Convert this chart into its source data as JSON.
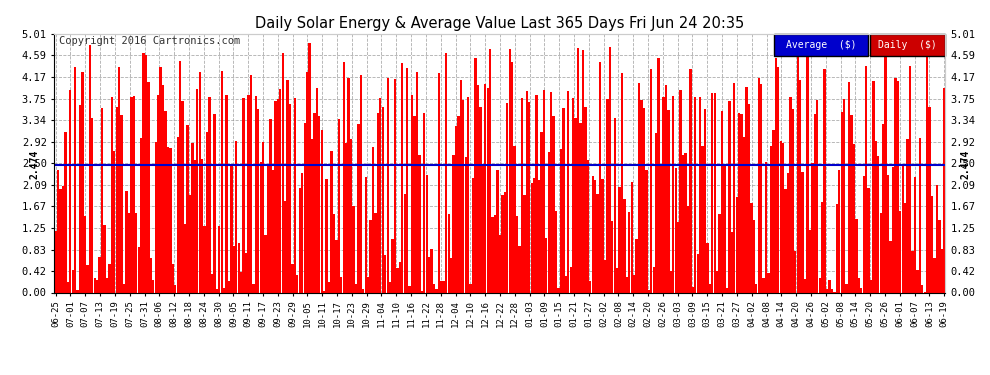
{
  "title": "Daily Solar Energy & Average Value Last 365 Days Fri Jun 24 20:35",
  "copyright": "Copyright 2016 Cartronics.com",
  "average_value": 2.474,
  "average_label": "2.474",
  "yticks": [
    0.0,
    0.42,
    0.83,
    1.25,
    1.67,
    2.09,
    2.5,
    2.92,
    3.34,
    3.75,
    4.17,
    4.59,
    5.01
  ],
  "ymax": 5.01,
  "ymin": 0.0,
  "bar_color": "#ff0000",
  "average_line_color": "#0000cc",
  "background_color": "#ffffff",
  "grid_color": "#999999",
  "legend_avg_bg": "#0000cc",
  "legend_daily_bg": "#cc0000",
  "legend_text_color": "#ffffff",
  "title_color": "#000000",
  "xtick_labels": [
    "06-25",
    "07-01",
    "07-07",
    "07-13",
    "07-19",
    "07-25",
    "07-31",
    "08-06",
    "08-12",
    "08-18",
    "08-24",
    "08-30",
    "09-05",
    "09-11",
    "09-17",
    "09-23",
    "09-29",
    "10-05",
    "10-11",
    "10-17",
    "10-23",
    "10-29",
    "11-04",
    "11-10",
    "11-16",
    "11-22",
    "11-28",
    "12-04",
    "12-10",
    "12-16",
    "12-22",
    "12-28",
    "01-03",
    "01-09",
    "01-15",
    "01-21",
    "01-27",
    "02-02",
    "02-08",
    "02-14",
    "02-20",
    "02-26",
    "03-03",
    "03-09",
    "03-15",
    "03-21",
    "03-27",
    "04-02",
    "04-08",
    "04-14",
    "04-20",
    "04-26",
    "05-02",
    "05-08",
    "05-14",
    "05-20",
    "05-26",
    "06-01",
    "06-07",
    "06-13",
    "06-19"
  ],
  "num_bars": 365
}
